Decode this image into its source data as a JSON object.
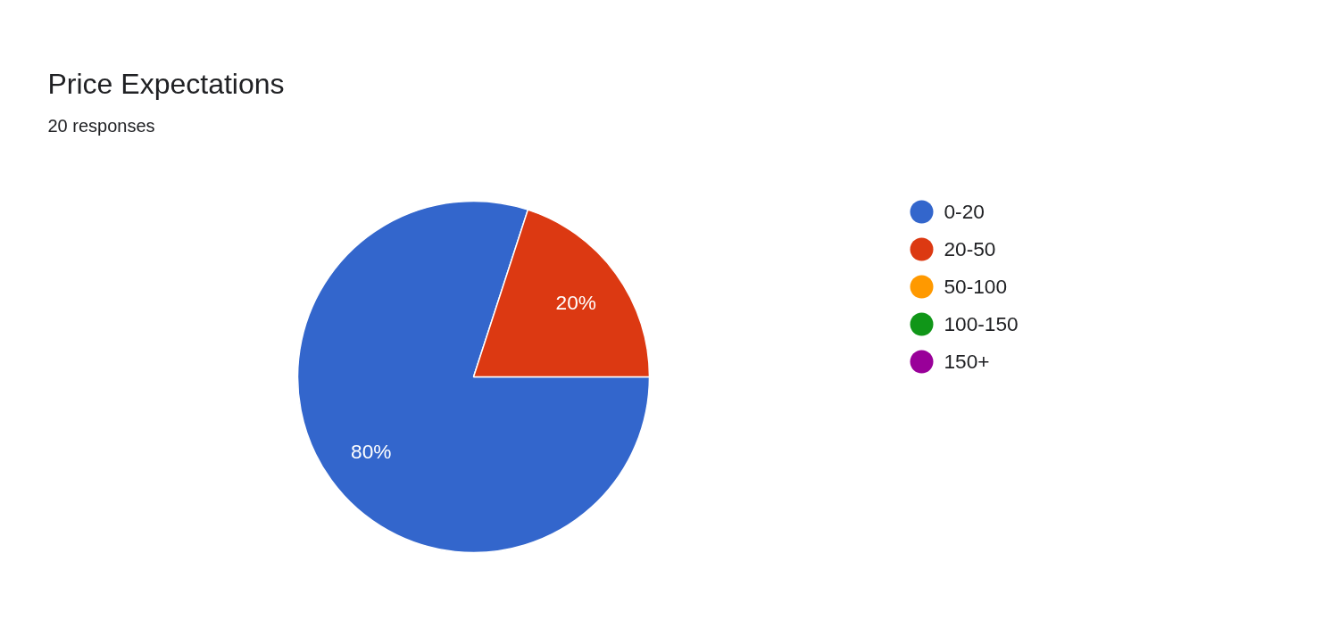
{
  "chart_data": {
    "type": "pie",
    "title": "Price Expectations",
    "subtitle": "20 responses",
    "categories": [
      "0-20",
      "20-50",
      "50-100",
      "100-150",
      "150+"
    ],
    "values": [
      80,
      20,
      0,
      0,
      0
    ],
    "colors": [
      "#3366cc",
      "#dc3912",
      "#ff9900",
      "#109618",
      "#990099"
    ],
    "value_labels": [
      "80%",
      "20%",
      null,
      null,
      null
    ],
    "legend": "right"
  }
}
